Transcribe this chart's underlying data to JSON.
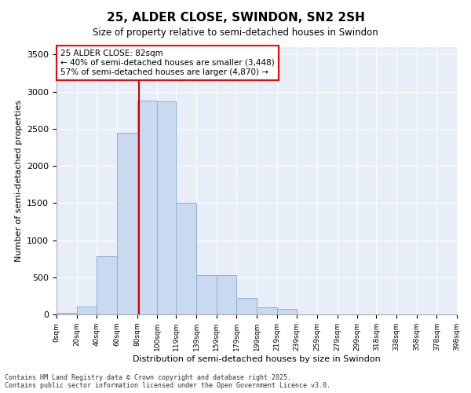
{
  "title_line1": "25, ALDER CLOSE, SWINDON, SN2 2SH",
  "title_line2": "Size of property relative to semi-detached houses in Swindon",
  "xlabel": "Distribution of semi-detached houses by size in Swindon",
  "ylabel": "Number of semi-detached properties",
  "property_size": 82,
  "annotation_line1": "25 ALDER CLOSE: 82sqm",
  "annotation_line2": "← 40% of semi-detached houses are smaller (3,448)",
  "annotation_line3": "57% of semi-detached houses are larger (4,870) →",
  "bar_color": "#c9d9f0",
  "bar_edge_color": "#8ab0d8",
  "vline_color": "#cc0000",
  "background_color": "#e8eef8",
  "bins": [
    0,
    20,
    40,
    60,
    80,
    100,
    119,
    139,
    159,
    179,
    199,
    219,
    239,
    259,
    279,
    299,
    318,
    338,
    358,
    378,
    398
  ],
  "counts": [
    25,
    110,
    780,
    2450,
    2880,
    2870,
    1500,
    530,
    530,
    220,
    95,
    70,
    0,
    0,
    0,
    0,
    0,
    0,
    0,
    0
  ],
  "ylim": [
    0,
    3600
  ],
  "yticks": [
    0,
    500,
    1000,
    1500,
    2000,
    2500,
    3000,
    3500
  ],
  "footnote": "Contains HM Land Registry data © Crown copyright and database right 2025.\nContains public sector information licensed under the Open Government Licence v3.0.",
  "tick_labels": [
    "0sqm",
    "20sqm",
    "40sqm",
    "60sqm",
    "80sqm",
    "100sqm",
    "119sqm",
    "139sqm",
    "159sqm",
    "179sqm",
    "199sqm",
    "219sqm",
    "239sqm",
    "259sqm",
    "279sqm",
    "299sqm",
    "318sqm",
    "338sqm",
    "358sqm",
    "378sqm",
    "398sqm"
  ]
}
